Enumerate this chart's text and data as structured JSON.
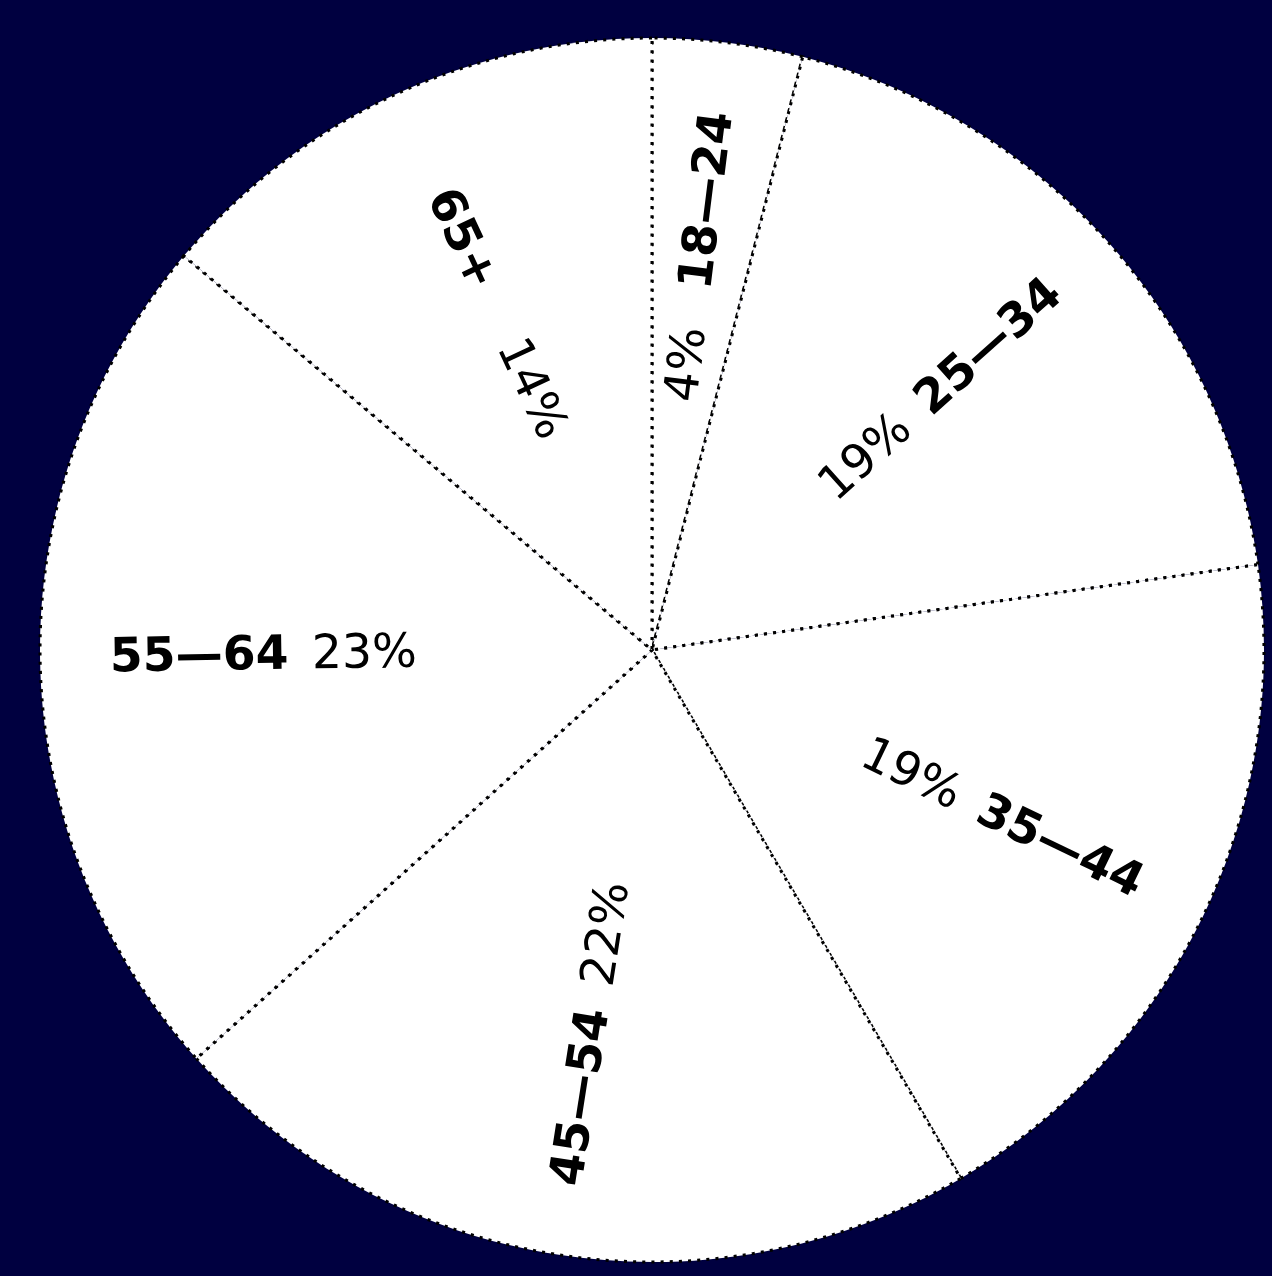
{
  "chart_data": {
    "type": "pie",
    "categories": [
      "18—24",
      "25—34",
      "35—44",
      "45—54",
      "55—64",
      "65+"
    ],
    "values": [
      4,
      19,
      19,
      22,
      23,
      14
    ],
    "value_labels": [
      "4%",
      "19%",
      "19%",
      "22%",
      "23%",
      "14%"
    ],
    "colors": [
      "#ffffff",
      "#ffffff",
      "#ffffff",
      "#ffffff",
      "#ffffff",
      "#ffffff"
    ]
  }
}
